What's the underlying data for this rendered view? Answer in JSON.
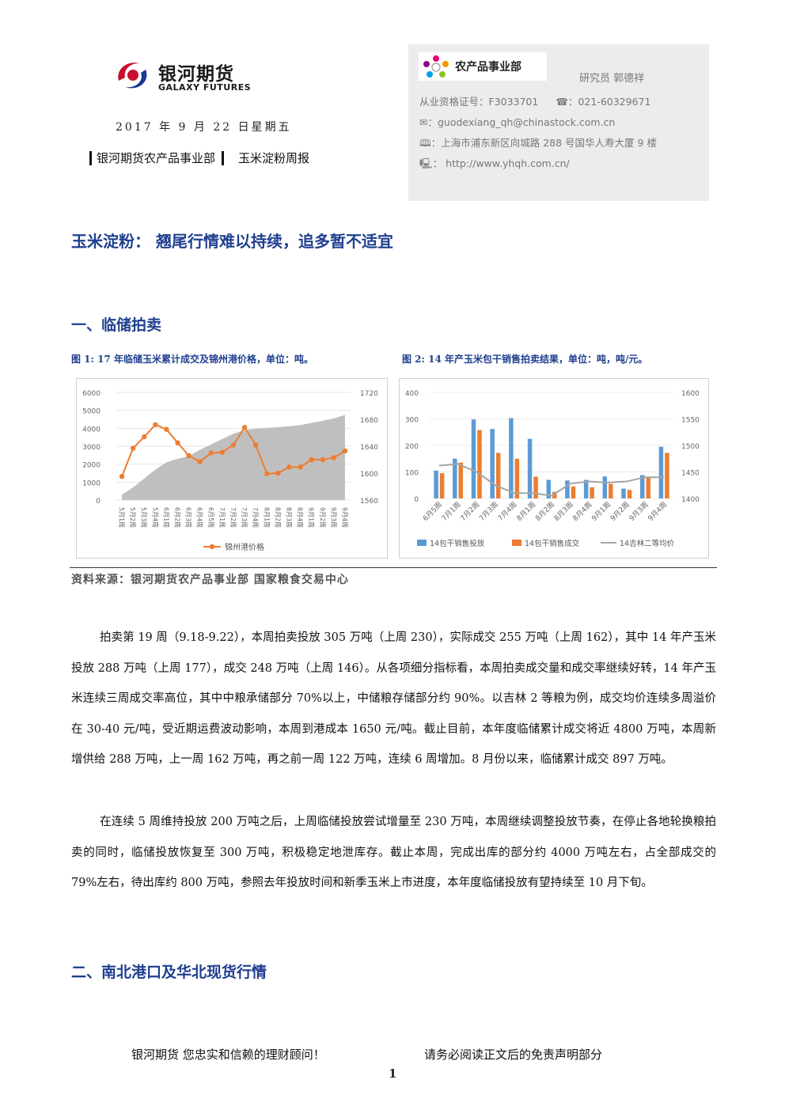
{
  "header": {
    "logo_cn": "银河期货",
    "logo_en": "GALAXY FUTURES",
    "date": "2017 年 9 月 22 日星期五",
    "dept": "银河期货农产品事业部",
    "report": "玉米淀粉周报"
  },
  "contact": {
    "dept_logo": "农产品事业部",
    "researcher": "研究员   郭德祥",
    "license": "从业资格证号：F3033701",
    "phone": "☎：021-60329671",
    "email": "✉：guodexiang_qh@chinastock.com.cn",
    "address": "🕮：上海市浦东新区向城路 288 号国华人寿大厦 9 楼",
    "web": "🖳：  http://www.yhqh.com.cn/"
  },
  "title": "玉米淀粉：  翘尾行情难以持续，追多暂不适宜",
  "section1": "一、临储拍卖",
  "fig1_caption": "图 1:  17 年临储玉米累计成交及锦州港价格，单位：吨。",
  "fig2_caption": "图 2:  14 年产玉米包干销售拍卖结果，单位：吨，吨/元。",
  "chart_data": [
    {
      "type": "area",
      "categories": [
        "5月1周",
        "5月2周",
        "5月3周",
        "5月4周",
        "6月1周",
        "6月2周",
        "6月3周",
        "6月4周",
        "6月5周",
        "7月1周",
        "7月2周",
        "7月3周",
        "7月4周",
        "8月1周",
        "8月2周",
        "8月3周",
        "8月4周",
        "9月1周",
        "9月2周",
        "9月3周",
        "9月4周"
      ],
      "left_ticks": [
        "6000",
        "5000",
        "4000",
        "3000",
        "2000",
        "1000",
        "0"
      ],
      "right_ticks": [
        "1720",
        "1680",
        "1640",
        "1600",
        "1560"
      ],
      "ylim_left": [
        0,
        6000
      ],
      "ylim_right": [
        1560,
        1720
      ],
      "area_values": [
        300,
        700,
        1200,
        1700,
        2100,
        2300,
        2450,
        2800,
        3100,
        3400,
        3700,
        3900,
        3980,
        4020,
        4060,
        4120,
        4180,
        4300,
        4420,
        4550,
        4750
      ],
      "series": [
        {
          "name": "锦州港价格",
          "values": [
            1595,
            1637,
            1654,
            1672,
            1665,
            1645,
            1626,
            1617,
            1630,
            1631,
            1642,
            1668,
            1642,
            1599,
            1600,
            1609,
            1609,
            1620,
            1620,
            1623,
            1633
          ]
        }
      ],
      "legend": [
        "锦州港价格"
      ]
    },
    {
      "type": "bar",
      "categories": [
        "6月5周",
        "7月1周",
        "7月2周",
        "7月3周",
        "7月4周",
        "8月1周",
        "8月2周",
        "8月3周",
        "8月4周",
        "9月1周",
        "9月2周",
        "9月3周",
        "9月4周"
      ],
      "left_ticks": [
        "400",
        "300",
        "200",
        "100",
        "0"
      ],
      "right_ticks": [
        "1600",
        "1550",
        "1500",
        "1450",
        "1400"
      ],
      "ylim_left": [
        0,
        400
      ],
      "ylim_right": [
        1400,
        1600
      ],
      "series": [
        {
          "name": "14包干销售投放",
          "values": [
            105,
            150,
            298,
            262,
            303,
            225,
            70,
            68,
            70,
            83,
            37,
            88,
            195
          ]
        },
        {
          "name": "14包干销售成交",
          "values": [
            95,
            135,
            258,
            172,
            150,
            82,
            25,
            45,
            42,
            55,
            32,
            82,
            172
          ]
        },
        {
          "name": "14吉林二等均价",
          "values": [
            1462,
            1465,
            1450,
            1425,
            1410,
            1410,
            1405,
            1428,
            1432,
            1430,
            1432,
            1440,
            1440
          ]
        }
      ]
    }
  ],
  "source": "资料来源：银河期货农产品事业部   国家粮食交易中心",
  "paragraphs": [
    "拍卖第 19 周（9.18-9.22），本周拍卖投放 305 万吨（上周 230），实际成交 255 万吨（上周 162），其中 14 年产玉米投放 288 万吨（上周 177），成交 248 万吨（上周 146）。从各项细分指标看，本周拍卖成交量和成交率继续好转，14 年产玉米连续三周成交率高位，其中中粮承储部分 70%以上，中储粮存储部分约 90%。以吉林 2 等粮为例，成交均价连续多周溢价在 30-40 元/吨，受近期运费波动影响，本周到港成本 1650 元/吨。截止目前，本年度临储累计成交将近 4800 万吨，本周新增供给 288 万吨，上一周 162 万吨，再之前一周 122 万吨，连续 6 周增加。8 月份以来，临储累计成交 897 万吨。",
    "在连续 5 周维持投放 200 万吨之后，上周临储投放尝试增量至 230 万吨，本周继续调整投放节奏，在停止各地轮换粮拍卖的同时，临储投放恢复至 300 万吨，积极稳定地泄库存。截止本周，完成出库的部分约 4000 万吨左右，占全部成交的 79%左右，待出库约 800 万吨，参照去年投放时间和新季玉米上市进度，本年度临储投放有望持续至 10 月下旬。"
  ],
  "section2": "二、南北港口及华北现货行情",
  "footer": {
    "left": "银河期货  您忠实和信赖的理财顾问！",
    "right": "请务必阅读正文后的免责声明部分",
    "page": "1"
  }
}
